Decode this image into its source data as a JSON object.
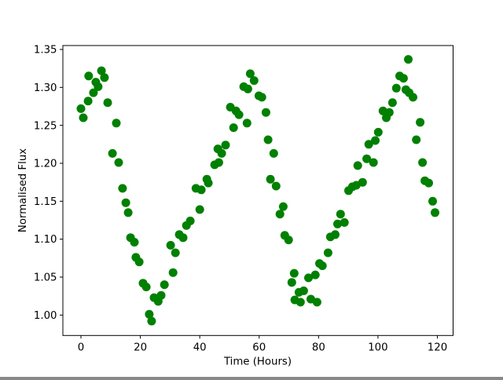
{
  "figure": {
    "background": "#ffffff"
  },
  "chart_data": {
    "type": "scatter",
    "title": "",
    "xlabel": "Time (Hours)",
    "ylabel": "Normalised Flux",
    "grid": false,
    "legend": null,
    "marker": {
      "shape": "circle",
      "color": "#008000",
      "radius_px": 5.5
    },
    "x_ticks": [
      0,
      20,
      40,
      60,
      80,
      100,
      120
    ],
    "x_tick_labels": [
      "0",
      "20",
      "40",
      "60",
      "80",
      "100",
      "120"
    ],
    "y_ticks": [
      1.0,
      1.05,
      1.1,
      1.15,
      1.2,
      1.25,
      1.3,
      1.35
    ],
    "y_tick_labels": [
      "1.00",
      "1.05",
      "1.10",
      "1.15",
      "1.20",
      "1.25",
      "1.30",
      "1.35"
    ],
    "xlim": [
      -6.1,
      125.4
    ],
    "ylim": [
      0.973,
      1.355
    ],
    "series": [
      {
        "name": "normalised-flux",
        "points": [
          [
            0.0,
            1.272
          ],
          [
            0.8,
            1.26
          ],
          [
            2.4,
            1.282
          ],
          [
            2.6,
            1.315
          ],
          [
            4.2,
            1.293
          ],
          [
            5.0,
            1.307
          ],
          [
            5.8,
            1.301
          ],
          [
            6.9,
            1.322
          ],
          [
            7.9,
            1.313
          ],
          [
            9.0,
            1.28
          ],
          [
            10.6,
            1.213
          ],
          [
            11.9,
            1.253
          ],
          [
            12.7,
            1.201
          ],
          [
            14.0,
            1.167
          ],
          [
            15.1,
            1.148
          ],
          [
            15.9,
            1.135
          ],
          [
            16.7,
            1.102
          ],
          [
            18.0,
            1.096
          ],
          [
            18.5,
            1.076
          ],
          [
            19.6,
            1.07
          ],
          [
            20.9,
            1.042
          ],
          [
            22.0,
            1.037
          ],
          [
            23.0,
            1.001
          ],
          [
            23.8,
            0.992
          ],
          [
            24.6,
            1.023
          ],
          [
            26.0,
            1.018
          ],
          [
            27.0,
            1.026
          ],
          [
            28.1,
            1.04
          ],
          [
            30.2,
            1.092
          ],
          [
            31.0,
            1.056
          ],
          [
            31.8,
            1.082
          ],
          [
            33.1,
            1.106
          ],
          [
            34.4,
            1.102
          ],
          [
            35.5,
            1.118
          ],
          [
            36.8,
            1.124
          ],
          [
            38.7,
            1.167
          ],
          [
            40.0,
            1.139
          ],
          [
            40.5,
            1.165
          ],
          [
            42.4,
            1.179
          ],
          [
            42.9,
            1.174
          ],
          [
            45.0,
            1.198
          ],
          [
            46.1,
            1.219
          ],
          [
            46.4,
            1.201
          ],
          [
            47.4,
            1.213
          ],
          [
            48.7,
            1.224
          ],
          [
            50.3,
            1.274
          ],
          [
            51.4,
            1.247
          ],
          [
            52.2,
            1.269
          ],
          [
            53.2,
            1.264
          ],
          [
            54.8,
            1.301
          ],
          [
            55.9,
            1.253
          ],
          [
            56.2,
            1.298
          ],
          [
            57.0,
            1.318
          ],
          [
            58.3,
            1.309
          ],
          [
            59.9,
            1.289
          ],
          [
            60.9,
            1.287
          ],
          [
            62.3,
            1.267
          ],
          [
            63.0,
            1.231
          ],
          [
            63.8,
            1.179
          ],
          [
            64.9,
            1.213
          ],
          [
            65.7,
            1.17
          ],
          [
            67.0,
            1.133
          ],
          [
            68.1,
            1.143
          ],
          [
            68.6,
            1.105
          ],
          [
            69.9,
            1.099
          ],
          [
            71.0,
            1.043
          ],
          [
            71.8,
            1.055
          ],
          [
            72.0,
            1.02
          ],
          [
            73.4,
            1.03
          ],
          [
            73.9,
            1.017
          ],
          [
            75.0,
            1.032
          ],
          [
            76.6,
            1.049
          ],
          [
            77.4,
            1.021
          ],
          [
            78.9,
            1.053
          ],
          [
            79.5,
            1.017
          ],
          [
            80.3,
            1.068
          ],
          [
            81.3,
            1.065
          ],
          [
            83.2,
            1.082
          ],
          [
            84.0,
            1.103
          ],
          [
            85.6,
            1.106
          ],
          [
            86.4,
            1.12
          ],
          [
            87.4,
            1.133
          ],
          [
            88.7,
            1.122
          ],
          [
            90.1,
            1.164
          ],
          [
            91.4,
            1.169
          ],
          [
            92.7,
            1.171
          ],
          [
            93.2,
            1.197
          ],
          [
            94.8,
            1.175
          ],
          [
            96.2,
            1.206
          ],
          [
            96.9,
            1.225
          ],
          [
            98.5,
            1.201
          ],
          [
            99.1,
            1.23
          ],
          [
            100.1,
            1.241
          ],
          [
            101.7,
            1.269
          ],
          [
            102.8,
            1.26
          ],
          [
            103.8,
            1.267
          ],
          [
            104.9,
            1.28
          ],
          [
            106.2,
            1.299
          ],
          [
            107.3,
            1.315
          ],
          [
            108.6,
            1.312
          ],
          [
            109.4,
            1.297
          ],
          [
            110.2,
            1.337
          ],
          [
            110.5,
            1.293
          ],
          [
            111.8,
            1.287
          ],
          [
            112.9,
            1.231
          ],
          [
            114.2,
            1.254
          ],
          [
            115.0,
            1.201
          ],
          [
            115.8,
            1.177
          ],
          [
            117.1,
            1.174
          ],
          [
            118.4,
            1.15
          ],
          [
            119.2,
            1.135
          ]
        ]
      }
    ]
  }
}
